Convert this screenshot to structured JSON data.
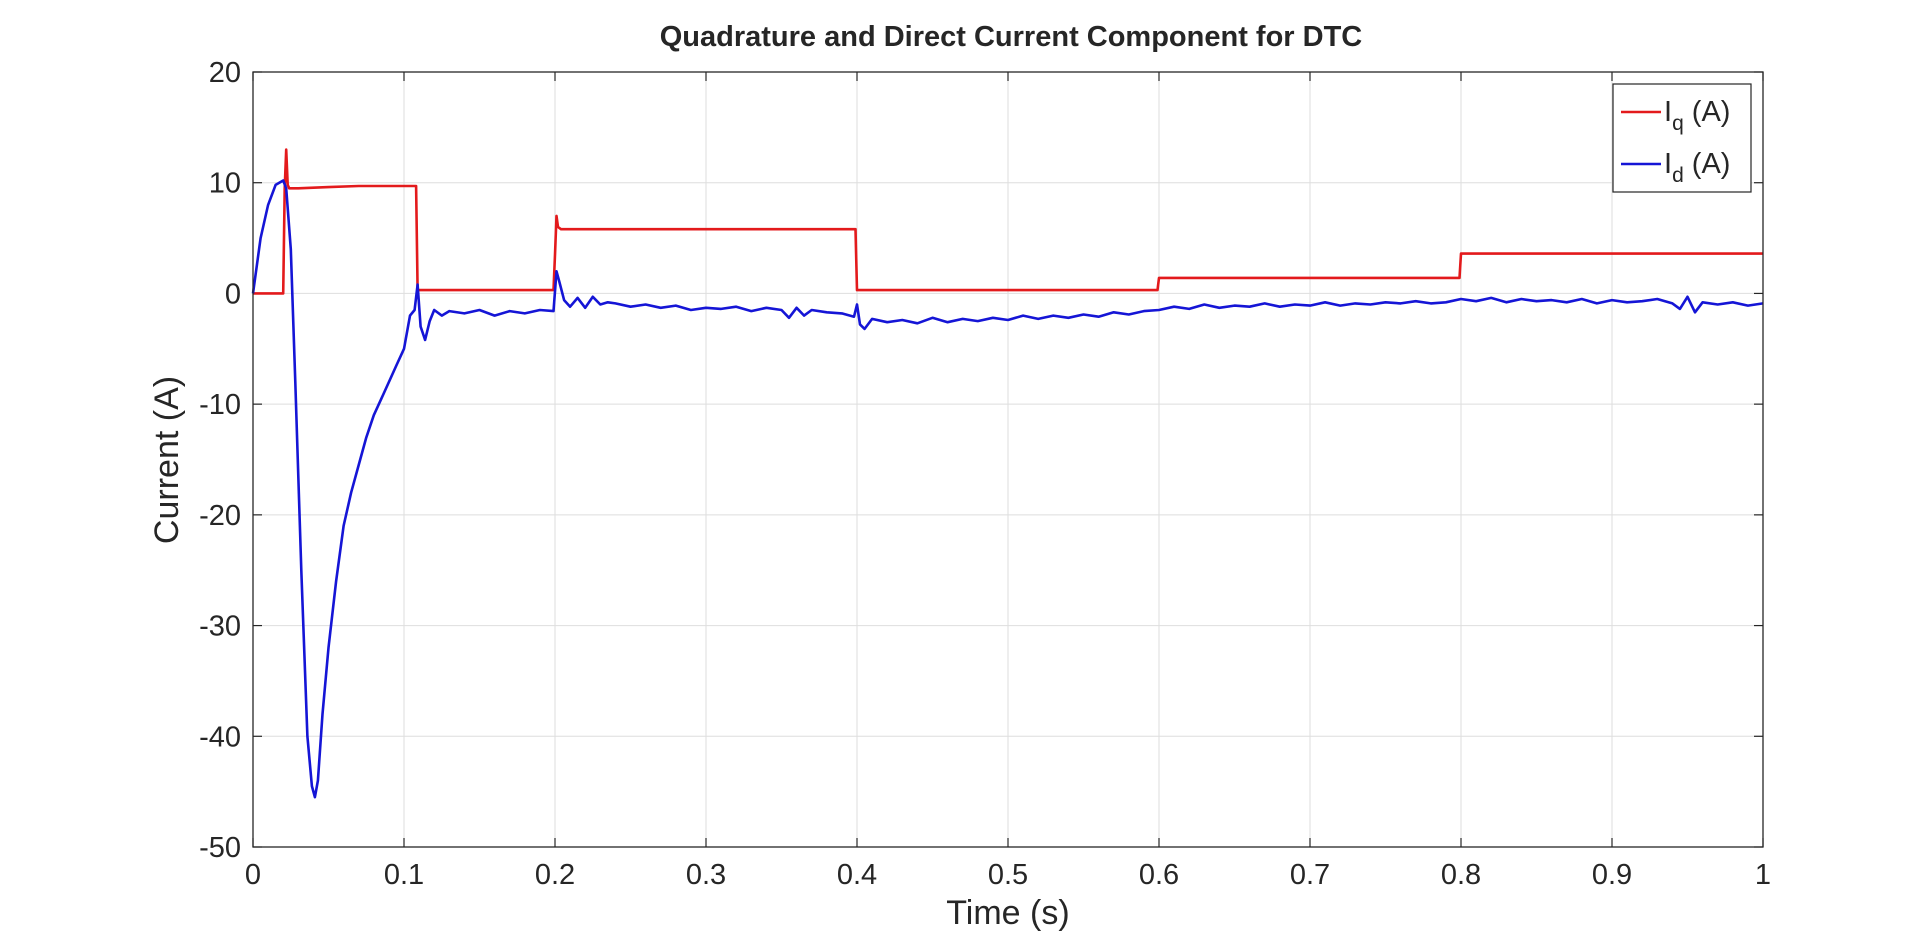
{
  "chart_data": {
    "type": "line",
    "title": "Quadrature and Direct Current Component for DTC",
    "xlabel": "Time (s)",
    "ylabel": "Current (A)",
    "xlim": [
      0,
      1
    ],
    "ylim": [
      -50,
      20
    ],
    "x_ticks": [
      0,
      0.1,
      0.2,
      0.3,
      0.4,
      0.5,
      0.6,
      0.7,
      0.8,
      0.9,
      1
    ],
    "x_tick_labels": [
      "0",
      "0.1",
      "0.2",
      "0.3",
      "0.4",
      "0.5",
      "0.6",
      "0.7",
      "0.8",
      "0.9",
      "1"
    ],
    "y_ticks": [
      20,
      10,
      0,
      -10,
      -20,
      -30,
      -40,
      -50
    ],
    "y_tick_labels": [
      "20",
      "10",
      "0",
      "-10",
      "-20",
      "-30",
      "-40",
      "-50"
    ],
    "grid": true,
    "legend_position": "top-right",
    "series": [
      {
        "name": "I_q (A)",
        "label_main": "I",
        "label_sub": "q",
        "label_suffix": " (A)",
        "color": "#e31a1c",
        "x": [
          0,
          0.02,
          0.021,
          0.022,
          0.023,
          0.024,
          0.03,
          0.05,
          0.07,
          0.09,
          0.108,
          0.109,
          0.11,
          0.15,
          0.199,
          0.2,
          0.201,
          0.202,
          0.204,
          0.25,
          0.3,
          0.35,
          0.399,
          0.4,
          0.401,
          0.45,
          0.5,
          0.55,
          0.599,
          0.6,
          0.601,
          0.65,
          0.7,
          0.75,
          0.799,
          0.8,
          0.801,
          0.85,
          0.9,
          0.95,
          1.0
        ],
        "y": [
          0,
          0,
          9.5,
          13,
          9.8,
          9.5,
          9.5,
          9.6,
          9.7,
          9.7,
          9.7,
          0.3,
          0.3,
          0.3,
          0.3,
          3.5,
          7.0,
          6.0,
          5.8,
          5.8,
          5.8,
          5.8,
          5.8,
          0.3,
          0.3,
          0.3,
          0.3,
          0.3,
          0.3,
          1.4,
          1.4,
          1.4,
          1.4,
          1.4,
          1.4,
          3.6,
          3.6,
          3.6,
          3.6,
          3.6,
          3.6
        ]
      },
      {
        "name": "I_d (A)",
        "label_main": "I",
        "label_sub": "d",
        "label_suffix": " (A)",
        "color": "#1515d6",
        "x": [
          0,
          0.005,
          0.01,
          0.015,
          0.02,
          0.022,
          0.025,
          0.028,
          0.032,
          0.036,
          0.039,
          0.041,
          0.043,
          0.046,
          0.05,
          0.055,
          0.06,
          0.065,
          0.07,
          0.075,
          0.08,
          0.085,
          0.09,
          0.095,
          0.1,
          0.104,
          0.107,
          0.109,
          0.111,
          0.114,
          0.117,
          0.12,
          0.125,
          0.13,
          0.14,
          0.15,
          0.16,
          0.17,
          0.18,
          0.19,
          0.199,
          0.201,
          0.203,
          0.206,
          0.21,
          0.215,
          0.22,
          0.225,
          0.23,
          0.235,
          0.24,
          0.25,
          0.26,
          0.27,
          0.28,
          0.29,
          0.3,
          0.31,
          0.32,
          0.33,
          0.34,
          0.35,
          0.355,
          0.36,
          0.365,
          0.37,
          0.38,
          0.39,
          0.398,
          0.4,
          0.402,
          0.405,
          0.41,
          0.42,
          0.43,
          0.44,
          0.45,
          0.46,
          0.47,
          0.48,
          0.49,
          0.5,
          0.51,
          0.52,
          0.53,
          0.54,
          0.55,
          0.56,
          0.57,
          0.58,
          0.59,
          0.6,
          0.61,
          0.62,
          0.63,
          0.64,
          0.65,
          0.66,
          0.67,
          0.68,
          0.69,
          0.7,
          0.71,
          0.72,
          0.73,
          0.74,
          0.75,
          0.76,
          0.77,
          0.78,
          0.79,
          0.8,
          0.81,
          0.82,
          0.83,
          0.84,
          0.85,
          0.86,
          0.87,
          0.88,
          0.89,
          0.9,
          0.91,
          0.92,
          0.93,
          0.94,
          0.945,
          0.95,
          0.955,
          0.96,
          0.97,
          0.98,
          0.99,
          1.0
        ],
        "y": [
          0,
          5,
          8,
          9.8,
          10.2,
          9.5,
          4,
          -8,
          -25,
          -40,
          -44.5,
          -45.5,
          -44,
          -38,
          -32,
          -26,
          -21,
          -18,
          -15.5,
          -13,
          -11,
          -9.5,
          -8,
          -6.5,
          -5,
          -2,
          -1.5,
          0.8,
          -3,
          -4.2,
          -2.5,
          -1.5,
          -2,
          -1.6,
          -1.8,
          -1.5,
          -2.0,
          -1.6,
          -1.8,
          -1.5,
          -1.6,
          2.0,
          1.0,
          -0.6,
          -1.2,
          -0.4,
          -1.3,
          -0.3,
          -1.0,
          -0.8,
          -0.9,
          -1.2,
          -1.0,
          -1.3,
          -1.1,
          -1.5,
          -1.3,
          -1.4,
          -1.2,
          -1.6,
          -1.3,
          -1.5,
          -2.2,
          -1.3,
          -2.0,
          -1.5,
          -1.7,
          -1.8,
          -2.1,
          -1.0,
          -2.8,
          -3.2,
          -2.3,
          -2.6,
          -2.4,
          -2.7,
          -2.2,
          -2.6,
          -2.3,
          -2.5,
          -2.2,
          -2.4,
          -2.0,
          -2.3,
          -2.0,
          -2.2,
          -1.9,
          -2.1,
          -1.7,
          -1.9,
          -1.6,
          -1.5,
          -1.2,
          -1.4,
          -1.0,
          -1.3,
          -1.1,
          -1.2,
          -0.9,
          -1.2,
          -1.0,
          -1.1,
          -0.8,
          -1.1,
          -0.9,
          -1.0,
          -0.8,
          -0.9,
          -0.7,
          -0.9,
          -0.8,
          -0.5,
          -0.7,
          -0.4,
          -0.8,
          -0.5,
          -0.7,
          -0.6,
          -0.8,
          -0.5,
          -0.9,
          -0.6,
          -0.8,
          -0.7,
          -0.5,
          -0.9,
          -1.4,
          -0.3,
          -1.7,
          -0.8,
          -1.0,
          -0.8,
          -1.1,
          -0.9
        ]
      }
    ]
  }
}
